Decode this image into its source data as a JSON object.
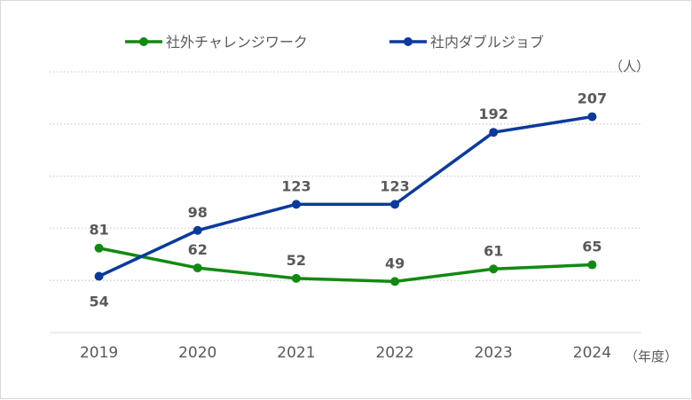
{
  "chart_data": {
    "type": "line",
    "title": "",
    "x": [
      "2019",
      "2020",
      "2021",
      "2022",
      "2023",
      "2024"
    ],
    "series": [
      {
        "name": "社外チャレンジワーク",
        "color": "#128a12",
        "values": [
          81,
          62,
          52,
          49,
          61,
          65
        ],
        "label_pos": [
          "above",
          "above",
          "above",
          "above",
          "above",
          "above"
        ]
      },
      {
        "name": "社内ダブルジョブ",
        "color": "#0b3a9c",
        "values": [
          54,
          98,
          123,
          123,
          192,
          207
        ],
        "label_pos": [
          "below",
          "above",
          "above",
          "above",
          "above",
          "above"
        ]
      }
    ],
    "ylim": [
      0,
      250
    ],
    "yticks": [
      0,
      50,
      100,
      150,
      200,
      250
    ],
    "ylabel": "（人）",
    "xlabel": "（年度）",
    "grid": true,
    "legend": "top-center"
  }
}
